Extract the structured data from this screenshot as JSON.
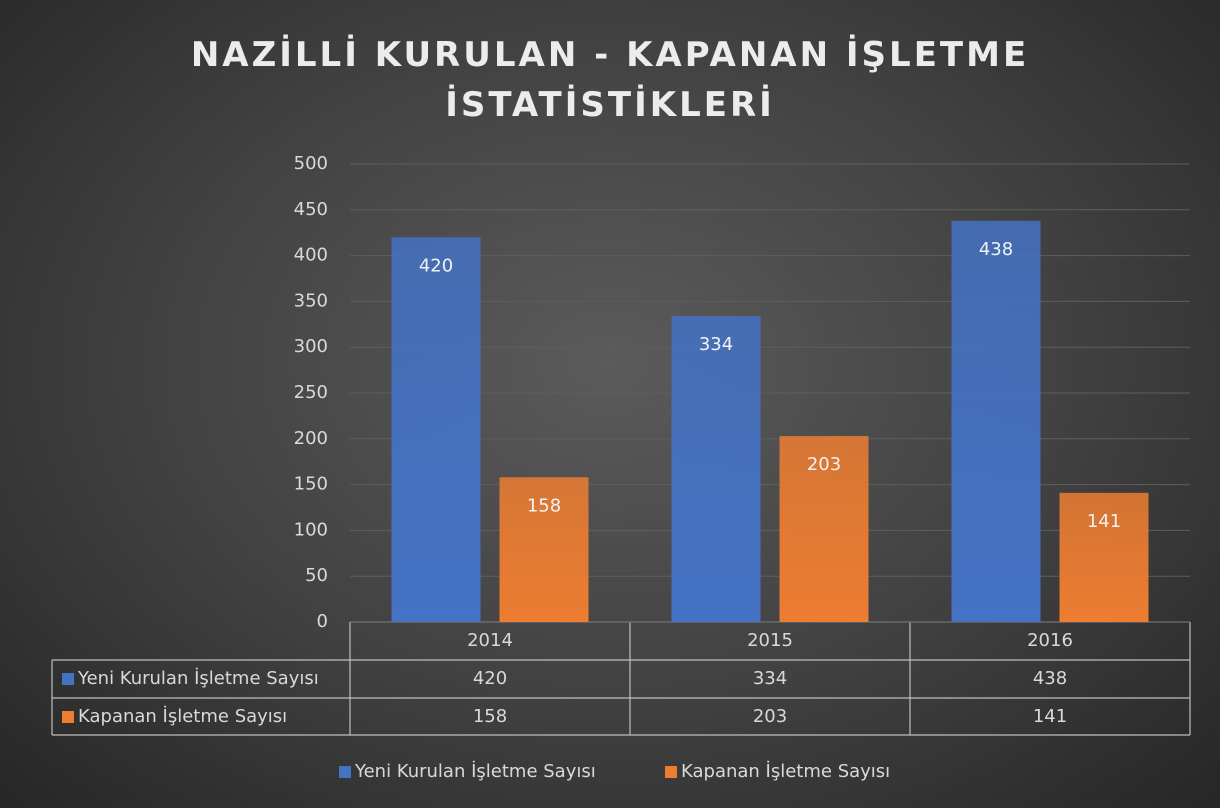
{
  "chart_data": {
    "type": "bar",
    "title": "NAZİLLİ KURULAN - KAPANAN İŞLETME İSTATİSTİKLERİ",
    "categories": [
      "2014",
      "2015",
      "2016"
    ],
    "series": [
      {
        "name": "Yeni Kurulan İşletme Sayısı",
        "color": "#4472c4",
        "values": [
          420,
          334,
          438
        ]
      },
      {
        "name": "Kapanan İşletme Sayısı",
        "color": "#ed7d31",
        "values": [
          158,
          203,
          141
        ]
      }
    ],
    "ylim": [
      0,
      500
    ],
    "yticks": [
      0,
      50,
      100,
      150,
      200,
      250,
      300,
      350,
      400,
      450,
      500
    ],
    "grid": true,
    "legend": "bottom"
  }
}
